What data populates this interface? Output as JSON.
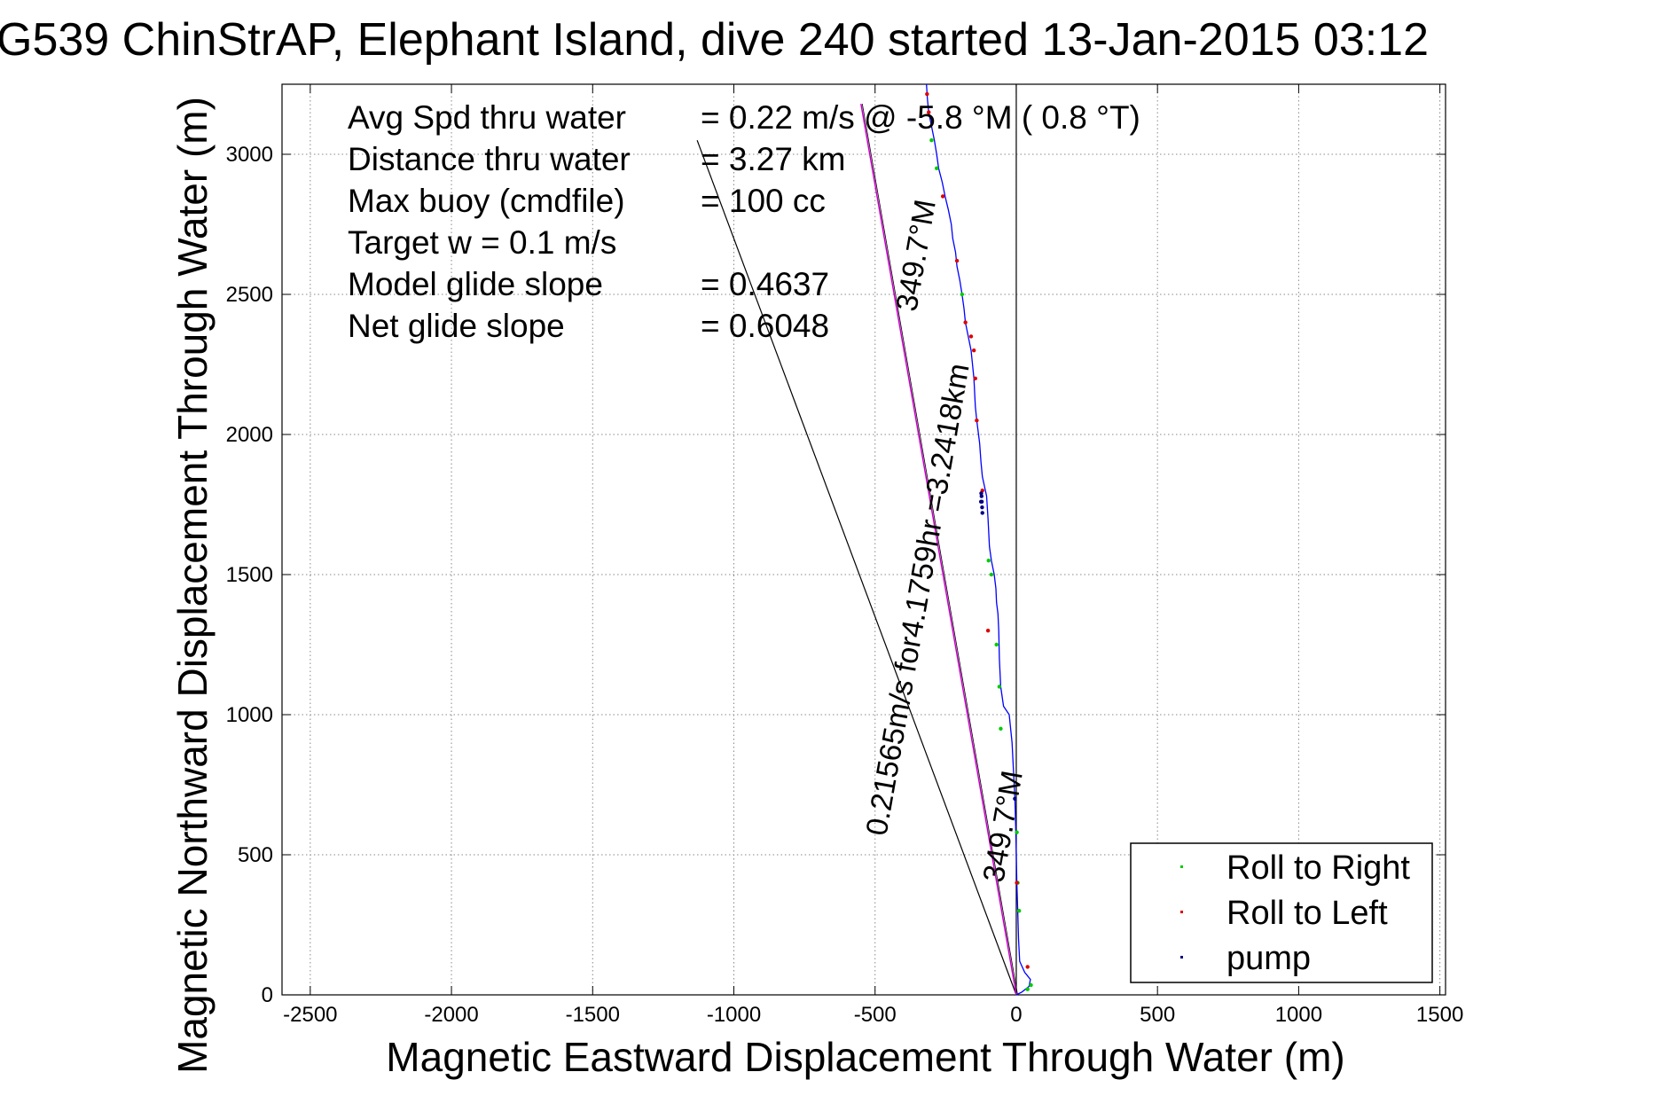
{
  "chart_data": {
    "type": "line",
    "title": "G539 ChinStrAP, Elephant Island, dive 240 started 13-Jan-2015 03:12",
    "xlabel": "Magnetic Eastward Displacement Through Water (m)",
    "ylabel": "Magnetic Northward Displacement Through Water (m)",
    "xlim": [
      -2600,
      1520
    ],
    "ylim": [
      0,
      3250
    ],
    "xticks": [
      -2500,
      -2000,
      -1500,
      -1000,
      -500,
      0,
      500,
      1000,
      1500
    ],
    "yticks": [
      0,
      500,
      1000,
      1500,
      2000,
      2500,
      3000
    ],
    "xtick_labels": [
      "-2500",
      "-2000",
      "-1500",
      "-1000",
      "-500",
      "0",
      "500",
      "1000",
      "1500"
    ],
    "ytick_labels": [
      "0",
      "500",
      "1000",
      "1500",
      "2000",
      "2500",
      "3000"
    ],
    "grid": true,
    "legend_position": "bottom-right",
    "legend": [
      "Roll to Right",
      "Roll to Left",
      "pump"
    ],
    "colors": {
      "track": "#0000ff",
      "roll_right": "#00cc00",
      "roll_left": "#dd0000",
      "pump": "#000080",
      "current_line": "#cc00cc",
      "glide_line": "#000000",
      "axis": "#000000",
      "grid": "#888888"
    },
    "track": {
      "x": [
        0,
        20,
        45,
        50,
        30,
        12,
        8,
        5,
        2,
        0,
        -2,
        -5,
        -10,
        -15,
        -25,
        -45,
        -55,
        -60,
        -62,
        -65,
        -70,
        -72,
        -78,
        -88,
        -95,
        -100,
        -105,
        -120,
        -125,
        -130,
        -140,
        -145,
        -150,
        -160,
        -170,
        -180,
        -185,
        -192,
        -200,
        -210,
        -215,
        -225,
        -230,
        -240,
        -252,
        -262,
        -275,
        -282,
        -290,
        -300,
        -310,
        -315,
        -318
      ],
      "y": [
        0,
        10,
        30,
        55,
        80,
        120,
        200,
        300,
        400,
        500,
        600,
        700,
        800,
        900,
        1000,
        1030,
        1100,
        1200,
        1300,
        1360,
        1400,
        1450,
        1500,
        1550,
        1600,
        1700,
        1780,
        1850,
        1900,
        1970,
        2050,
        2100,
        2200,
        2300,
        2350,
        2400,
        2450,
        2500,
        2550,
        2600,
        2650,
        2700,
        2750,
        2800,
        2850,
        2900,
        2950,
        3000,
        3050,
        3100,
        3150,
        3200,
        3250
      ]
    },
    "roll_right_points": {
      "x": [
        52,
        40,
        10,
        5,
        2,
        -55,
        -60,
        -70,
        -88,
        -98,
        -192,
        -282,
        -300
      ],
      "y": [
        35,
        20,
        300,
        400,
        580,
        950,
        1100,
        1250,
        1500,
        1550,
        2500,
        2950,
        3050
      ]
    },
    "roll_left_points": {
      "x": [
        40,
        2,
        -100,
        -120,
        -140,
        -145,
        -150,
        -160,
        -180,
        -210,
        -260,
        -310,
        -316
      ],
      "y": [
        100,
        400,
        1300,
        1800,
        2050,
        2200,
        2300,
        2350,
        2400,
        2620,
        2850,
        3150,
        3215
      ]
    },
    "pump_points": {
      "x": [
        -120,
        -121,
        -122,
        -123,
        -124,
        -125,
        -5
      ],
      "y": [
        1720,
        1740,
        1760,
        1780,
        1790,
        1760,
        700
      ]
    },
    "current_line": {
      "x": [
        0,
        -550
      ],
      "y": [
        0,
        3180
      ]
    },
    "glide_line": {
      "x": [
        0,
        -1130
      ],
      "y": [
        0,
        3050
      ]
    },
    "heading_line": {
      "x": [
        0,
        0
      ],
      "y": [
        0,
        3250
      ]
    }
  },
  "stats": {
    "avg_spd_label": "Avg Spd thru water",
    "avg_spd_value": "=  0.22 m/s @   -5.8 °M (  0.8 °T)",
    "distance_label": "Distance thru water",
    "distance_value": "=  3.27 km",
    "max_buoy_label": "Max buoy (cmdfile)",
    "max_buoy_value": "= 100 cc",
    "target_w": "Target w    = 0.1 m/s",
    "model_glide_label": "Model glide slope",
    "model_glide_value": "= 0.4637",
    "net_glide_label": "Net glide slope",
    "net_glide_value": "= 0.6048"
  },
  "annotations": {
    "heading_top": "349.7°M",
    "current_text": "0.21565m/s for4.1759hr =3.2418km",
    "heading_bottom": "349.7°M"
  }
}
